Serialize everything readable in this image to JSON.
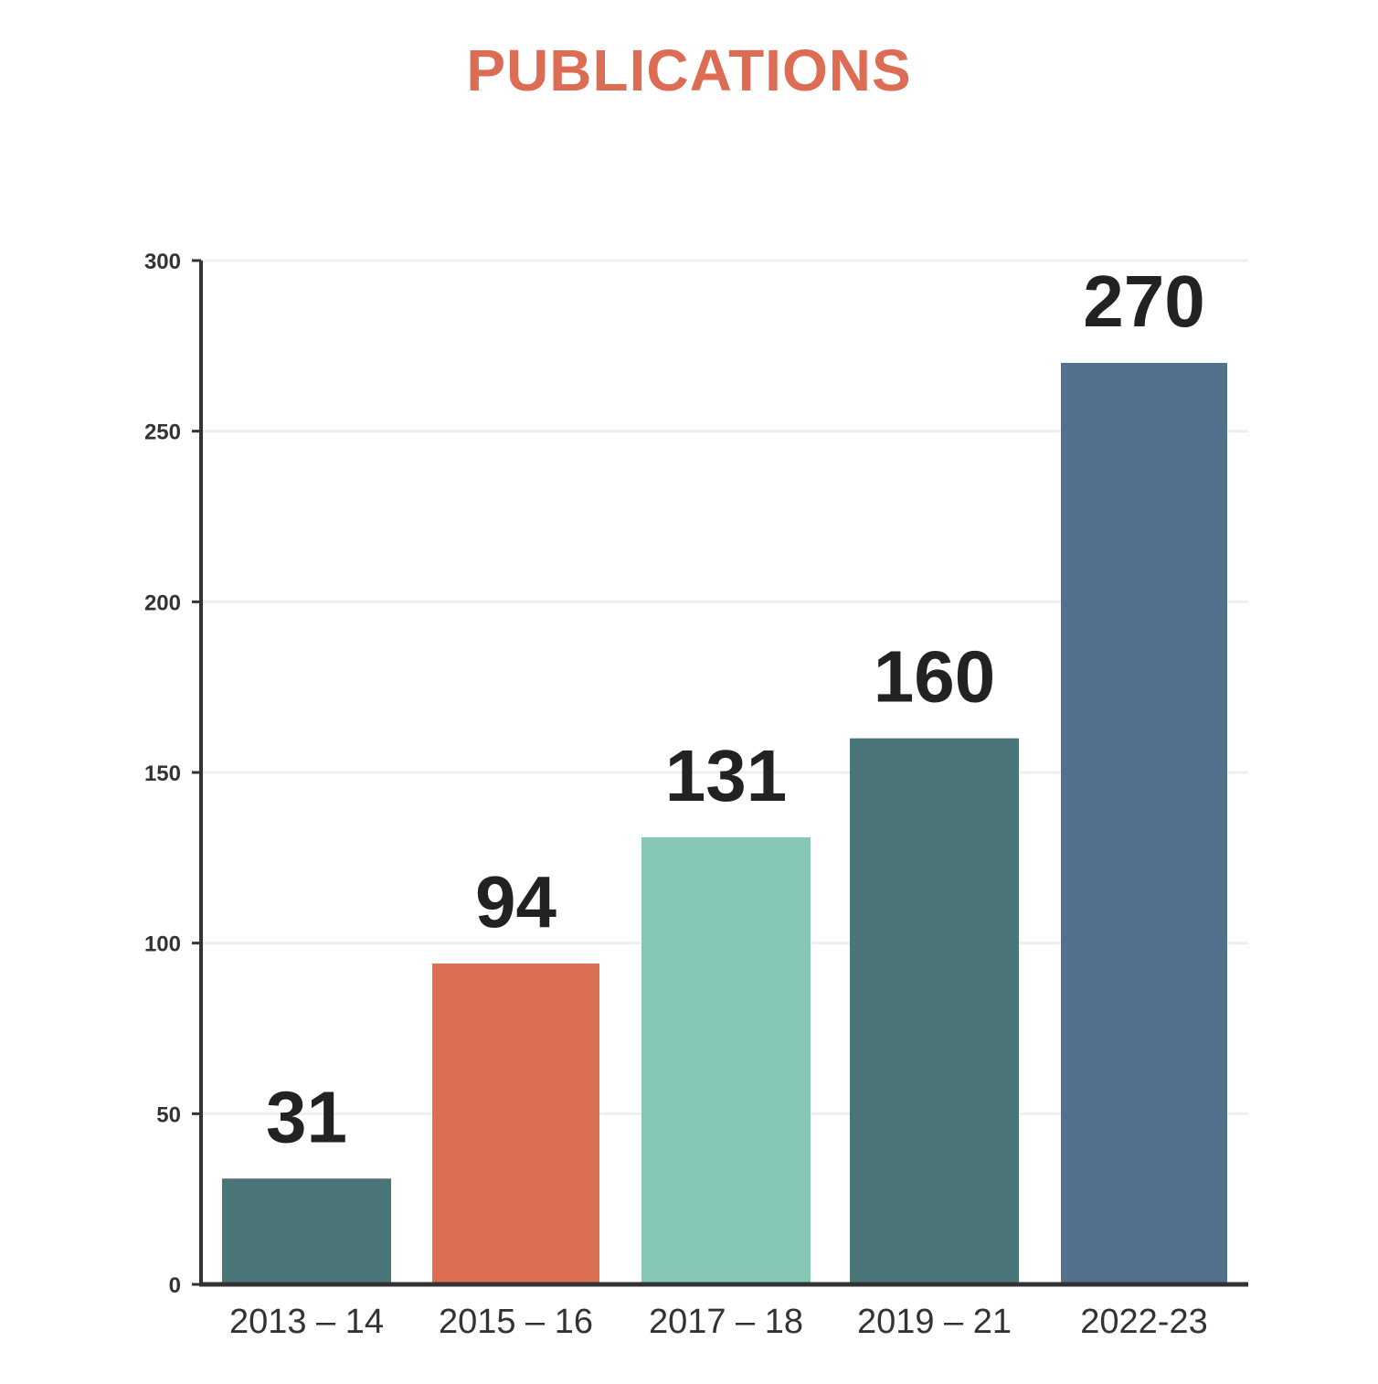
{
  "colors": {
    "title": "#DC6C53",
    "axis": "#333333",
    "grid": "#EFEFEF",
    "text": "#222222"
  },
  "chart_data": {
    "type": "bar",
    "title": "PUBLICATIONS",
    "xlabel": "",
    "ylabel": "",
    "categories": [
      "2013 – 14",
      "2015 – 16",
      "2017 – 18",
      "2019 – 21",
      "2022-23"
    ],
    "values": [
      31,
      94,
      131,
      160,
      270
    ],
    "data_labels": [
      "31",
      "94",
      "131",
      "160",
      "270"
    ],
    "bar_colors": [
      "#4A7679",
      "#DC6E53",
      "#85C7B4",
      "#4A7679",
      "#53708D"
    ],
    "ylim": [
      0,
      300
    ],
    "yticks": [
      0,
      50,
      100,
      150,
      200,
      250,
      300
    ],
    "ytick_labels": [
      "0",
      "50",
      "100",
      "150",
      "200",
      "250",
      "300"
    ],
    "grid": true,
    "legend": "none"
  }
}
